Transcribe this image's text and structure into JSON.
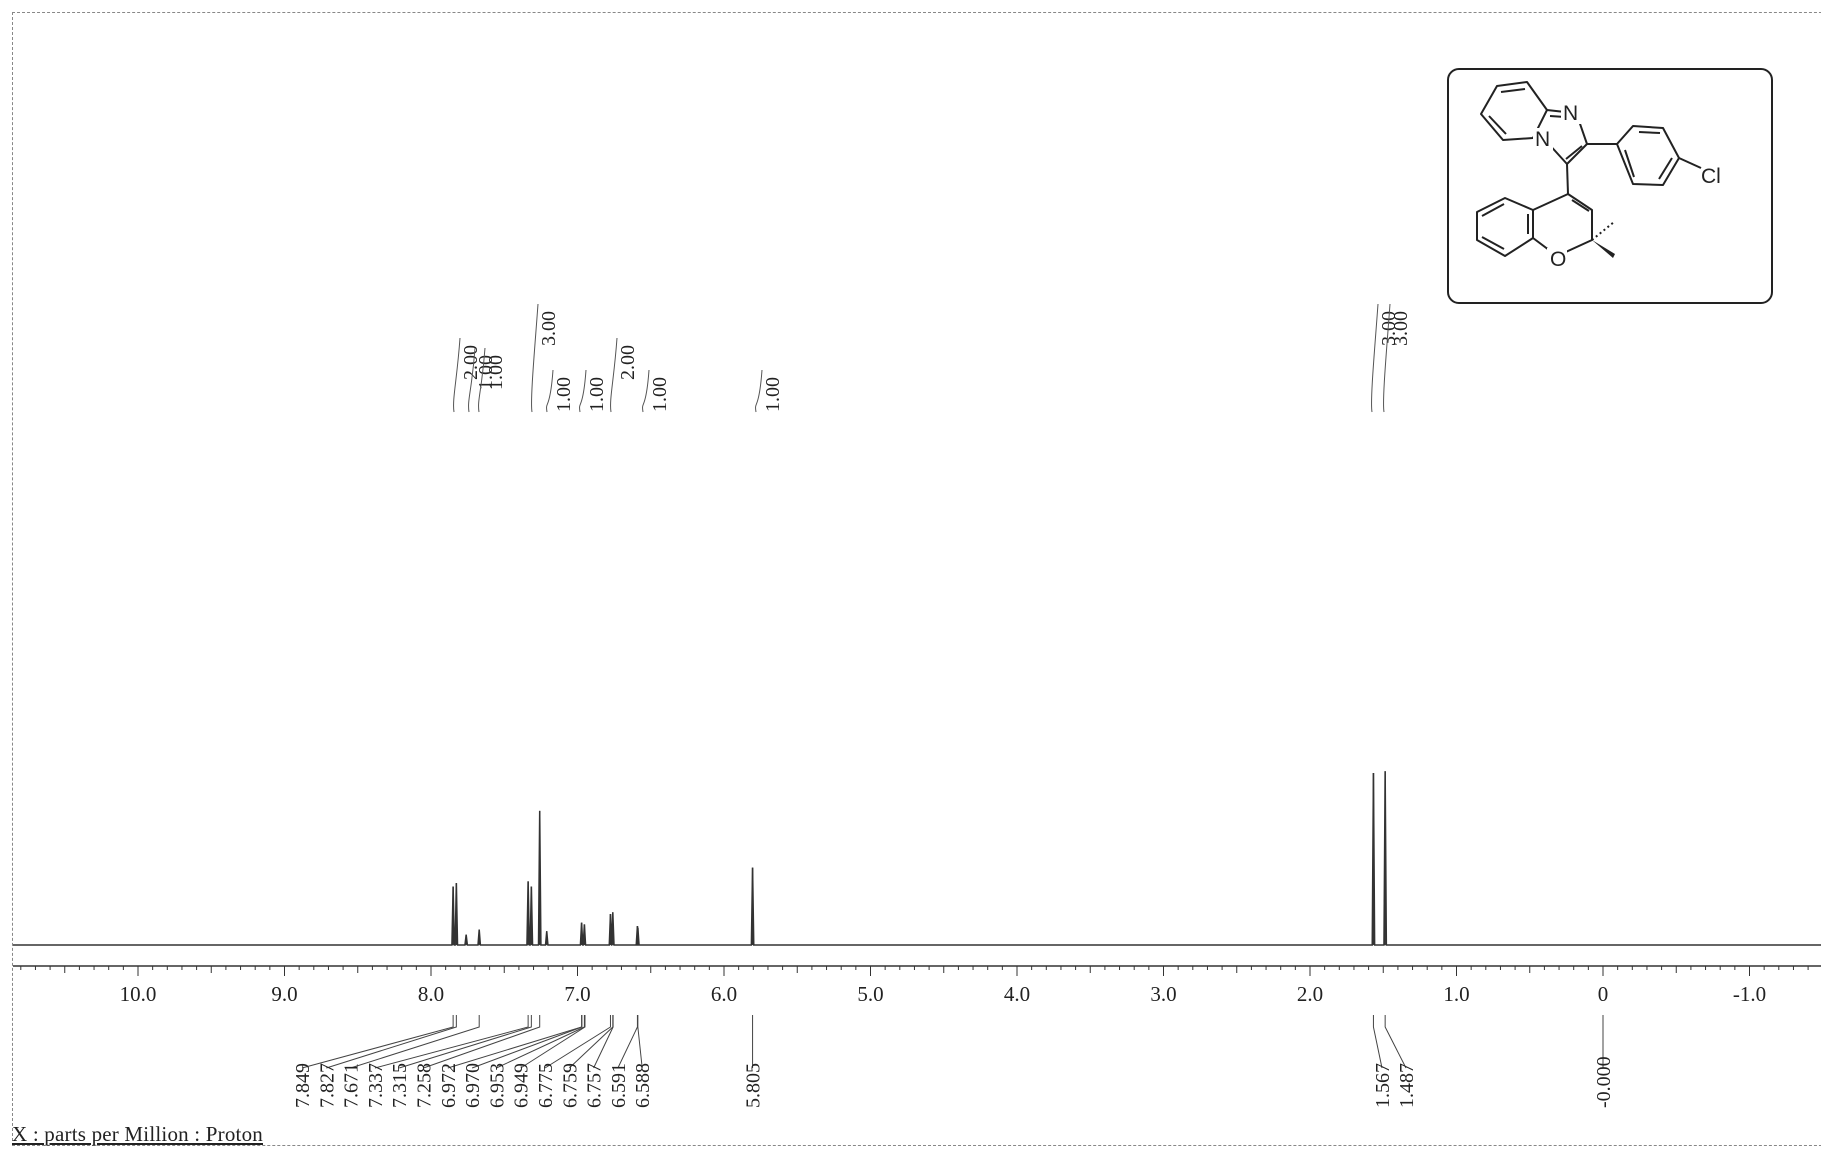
{
  "xlabel": "X : parts per Million : Proton",
  "structure": {
    "name": "2-(4-chlorophenyl)-3-(2,2-dimethyl-2H-chromen-4-yl)imidazo[1,2-a]pyridine",
    "atom_labels": {
      "n_top": "N",
      "n_bridge": "N",
      "cl": "Cl",
      "o": "O"
    }
  },
  "chart_data": {
    "type": "line",
    "title": "",
    "xlabel": "X : parts per Million : Proton",
    "ylabel": "",
    "xlim": [
      10.8,
      -1.45
    ],
    "x_reversed": true,
    "grid": false,
    "legend": "none",
    "ticks": [
      10.0,
      9.0,
      8.0,
      7.0,
      6.0,
      5.0,
      4.0,
      3.0,
      2.0,
      1.0,
      0,
      -1.0
    ],
    "tick_labels": [
      "10.0",
      "9.0",
      "8.0",
      "7.0",
      "6.0",
      "5.0",
      "4.0",
      "3.0",
      "2.0",
      "1.0",
      "0",
      "-1.0"
    ],
    "peaks": [
      {
        "ppm": 7.849,
        "height": 0.34
      },
      {
        "ppm": 7.827,
        "height": 0.36
      },
      {
        "ppm": 7.76,
        "height": 0.06
      },
      {
        "ppm": 7.671,
        "height": 0.09
      },
      {
        "ppm": 7.337,
        "height": 0.37
      },
      {
        "ppm": 7.315,
        "height": 0.34
      },
      {
        "ppm": 7.258,
        "height": 0.78
      },
      {
        "ppm": 7.21,
        "height": 0.08
      },
      {
        "ppm": 6.972,
        "height": 0.13
      },
      {
        "ppm": 6.953,
        "height": 0.12
      },
      {
        "ppm": 6.775,
        "height": 0.18
      },
      {
        "ppm": 6.759,
        "height": 0.19
      },
      {
        "ppm": 6.591,
        "height": 0.11
      },
      {
        "ppm": 6.588,
        "height": 0.1
      },
      {
        "ppm": 5.805,
        "height": 0.45
      },
      {
        "ppm": 1.567,
        "height": 1.0
      },
      {
        "ppm": 1.487,
        "height": 1.01
      }
    ],
    "peak_labels": [
      "7.849",
      "7.827",
      "7.671",
      "7.337",
      "7.315",
      "7.258",
      "6.972",
      "6.970",
      "6.953",
      "6.949",
      "6.775",
      "6.759",
      "6.757",
      "6.591",
      "6.588",
      "5.805",
      "1.567",
      "1.487",
      "-0.000"
    ],
    "peak_label_ppm": [
      7.849,
      7.827,
      7.671,
      7.337,
      7.315,
      7.258,
      6.972,
      6.97,
      6.953,
      6.949,
      6.775,
      6.759,
      6.757,
      6.591,
      6.588,
      5.805,
      1.567,
      1.487,
      0.0
    ],
    "integrals": [
      {
        "value": "2.00",
        "ppm": 7.82,
        "level": 2
      },
      {
        "value": "1.00",
        "ppm": 7.75,
        "level": 1
      },
      {
        "value": "1.00",
        "ppm": 7.7,
        "level": 1
      },
      {
        "value": "3.00",
        "ppm": 7.32,
        "level": 3
      },
      {
        "value": "1.00",
        "ppm": 7.05,
        "level": 1
      },
      {
        "value": "1.00",
        "ppm": 6.92,
        "level": 1
      },
      {
        "value": "2.00",
        "ppm": 6.8,
        "level": 2
      },
      {
        "value": "1.00",
        "ppm": 6.6,
        "level": 1
      },
      {
        "value": "1.00",
        "ppm": 5.805,
        "level": 1
      },
      {
        "value": "3.00",
        "ppm": 1.57,
        "level": 3
      },
      {
        "value": "3.00",
        "ppm": 1.49,
        "level": 3
      }
    ]
  }
}
